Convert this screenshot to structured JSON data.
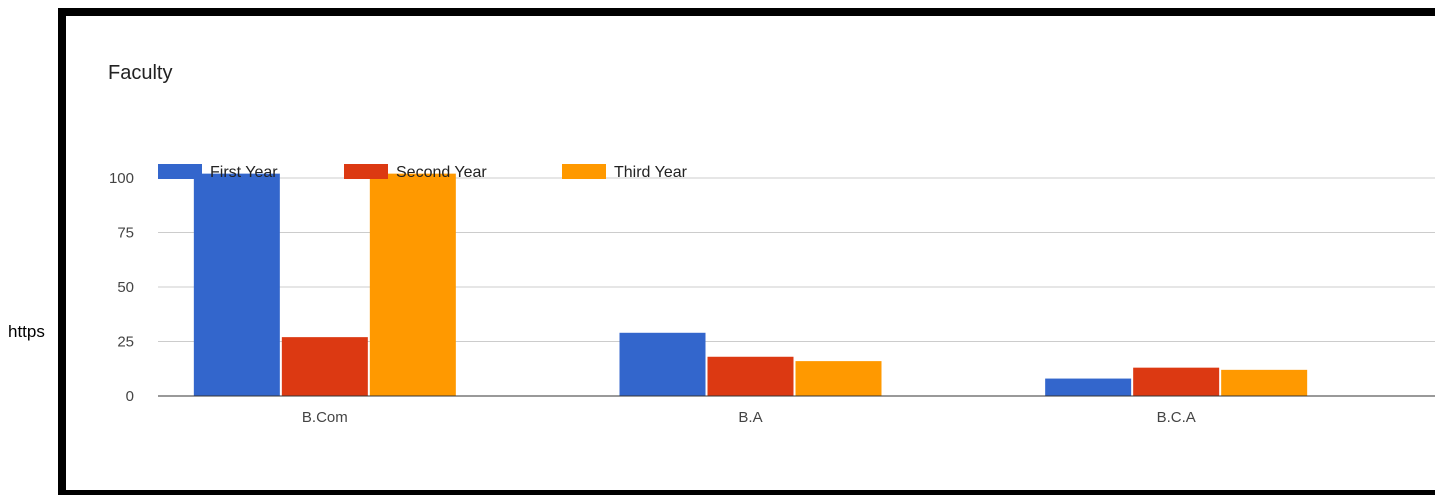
{
  "page": {
    "side_text": "https"
  },
  "chart_data": {
    "type": "bar",
    "title": "Faculty",
    "categories": [
      "B.Com",
      "B.A",
      "B.C.A"
    ],
    "series": [
      {
        "name": "First Year",
        "color": "#3366CC",
        "values": [
          102,
          29,
          8
        ]
      },
      {
        "name": "Second Year",
        "color": "#DC3912",
        "values": [
          27,
          18,
          13
        ]
      },
      {
        "name": "Third Year",
        "color": "#FF9900",
        "values": [
          102,
          16,
          12
        ]
      }
    ],
    "yticks": [
      0,
      25,
      50,
      75,
      100
    ],
    "ylim": [
      0,
      100
    ],
    "grid": true,
    "legend_position": "top-left"
  }
}
